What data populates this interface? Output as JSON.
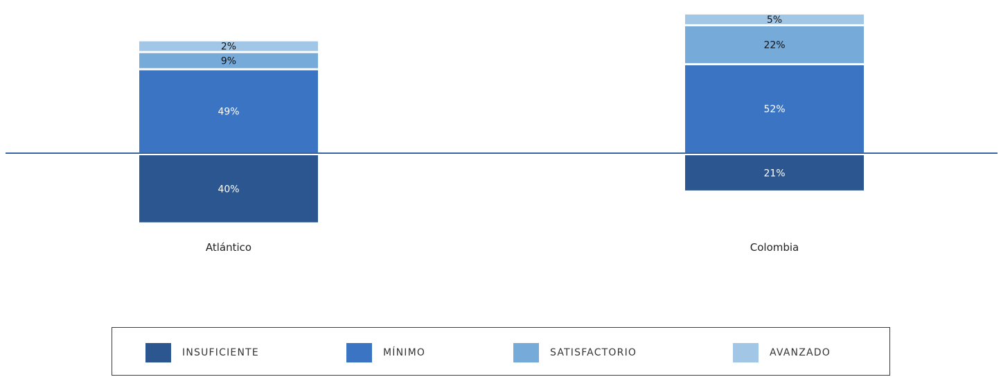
{
  "chart_data": {
    "type": "bar",
    "stacked": true,
    "diverging": true,
    "categories": [
      "Atlántico",
      "Colombia"
    ],
    "series": [
      {
        "name": "INSUFICIENTE",
        "color": "#2b5690",
        "values": [
          40,
          21
        ],
        "labels": [
          "40%",
          "21%"
        ],
        "below_baseline": true
      },
      {
        "name": "MÍNIMO",
        "color": "#3a74c2",
        "values": [
          49,
          52
        ],
        "labels": [
          "49%",
          "52%"
        ],
        "below_baseline": false
      },
      {
        "name": "SATISFACTORIO",
        "color": "#76aad9",
        "values": [
          9,
          22
        ],
        "labels": [
          "9%",
          "22%"
        ],
        "below_baseline": false
      },
      {
        "name": "AVANZADO",
        "color": "#a2c7e6",
        "values": [
          2,
          5
        ],
        "labels": [
          "2%",
          "5%"
        ],
        "below_baseline": false
      }
    ],
    "legend": {
      "position": "bottom",
      "items": [
        "INSUFICIENTE",
        "MÍNIMO",
        "SATISFACTORIO",
        "AVANZADO"
      ]
    },
    "baseline_color": "#3a64a0",
    "grid": false
  }
}
